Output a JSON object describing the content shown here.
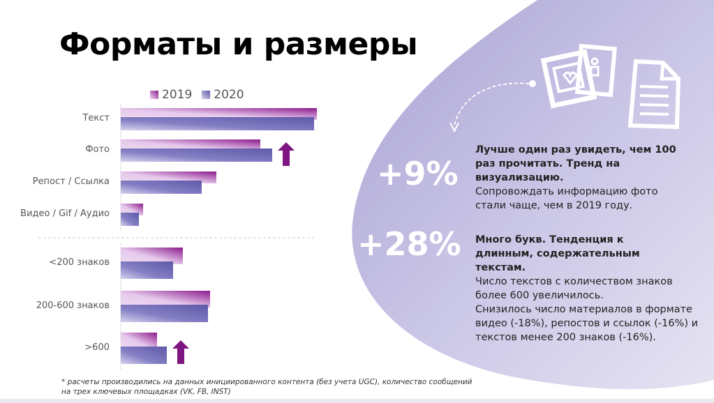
{
  "title": "Форматы и размеры",
  "colors": {
    "bar_2019": "#8b1a8c",
    "bar_2020": "#5e58a8",
    "arrow": "#7f1580",
    "blob": "#b9b4dc"
  },
  "icons": [
    "photo-heart-icon",
    "photo-people-icon",
    "document-icon",
    "dashed-arrow-icon"
  ],
  "chart_data": {
    "type": "bar",
    "orientation": "horizontal",
    "categories": [
      "Текст",
      "Фото",
      "Репост / Ссылка",
      "Видео / Gif / Аудио",
      "<200 знаков",
      "200-600 знаков",
      ">600"
    ],
    "groups": [
      [
        "Текст",
        "Фото",
        "Репост / Ссылка",
        "Видео / Gif / Аудио"
      ],
      [
        "<200 знаков",
        "200-600 знаков",
        ">600"
      ]
    ],
    "series": [
      {
        "name": "2019",
        "values": [
          281,
          200,
          137,
          32,
          89,
          128,
          52
        ]
      },
      {
        "name": "2020",
        "values": [
          277,
          217,
          116,
          26,
          75,
          125,
          66
        ]
      }
    ],
    "values_note_units": "relative",
    "legend": "top",
    "grid": false,
    "up_arrows_on": [
      "Фото",
      ">600"
    ]
  },
  "stats": [
    {
      "value": "+9%",
      "headline": "Лучше один раз увидеть, чем 100 раз прочитать. Тренд на визуализацию.",
      "body": "Сопровождать информацию фото стали чаще, чем в 2019 году."
    },
    {
      "value": "+28%",
      "headline": "Много букв. Тенденция к длинным, содержательным текстам.",
      "body": "Число текстов с количеством знаков более 600 увеличилось."
    }
  ],
  "note": "Снизилось число материалов в формате видео (-18%), репостов и ссылок (-16%) и текстов менее 200 знаков (-16%).",
  "footnote": "* расчеты производились на данных инициированного контента (без учета UGC), количество сообщений на трех ключевых площадках  (VK, FB, INST)"
}
